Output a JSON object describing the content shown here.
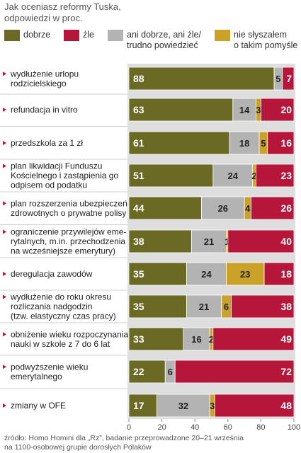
{
  "subtitle": "Jak oceniasz reformy Tuska,\nodpowiedzi w proc.",
  "colors": {
    "dobrze": "#6b6a24",
    "zle": "#b5163a",
    "ani": "#b3b3b3",
    "nie": "#c9a227",
    "band": "#dedede",
    "arrow": "#b5163a"
  },
  "legend": [
    {
      "name": "dobrze",
      "label": "dobrze",
      "color_key": "dobrze"
    },
    {
      "name": "zle",
      "label": "źle",
      "color_key": "zle"
    },
    {
      "name": "ani",
      "label": "ani dobrze, ani źle/\ntrudno powiedzieć",
      "color_key": "ani"
    },
    {
      "name": "nie",
      "label": "nie słyszałem\no takim pomyśle",
      "color_key": "nie"
    }
  ],
  "chart_data": {
    "type": "bar",
    "stacked": true,
    "orientation": "horizontal",
    "xlim": [
      0,
      100
    ],
    "xticks": [
      0,
      20,
      40,
      60,
      80,
      100
    ],
    "categories": [
      "wydłużenie urlopu\nrodzicielskiego",
      "refundacja in vitro",
      "przedszkola za 1 zł",
      "plan likwidacji Funduszu\nKościelnego i zastąpienia go\nodpisem od podatku",
      "plan rozszerzenia ubezpieczeń\nzdrowotnych o prywatne polisy",
      "ograniczenie przywilejów eme-\nrytalnych, m.in. przechodzenia\nna wcześniejsze emerytury)",
      "deregulacja zawodów",
      "wydłużenie do roku okresu\nrozliczania nadgodzin\n(tzw. elastyczny czas pracy)",
      "obniżenie wieku rozpoczynania\nnauki w szkole z 7 do 6 lat",
      "podwyższenie wieku\nemerytalnego",
      "zmiany w OFE"
    ],
    "series": [
      {
        "name": "dobrze",
        "values": [
          88,
          63,
          61,
          51,
          44,
          38,
          35,
          35,
          33,
          22,
          17
        ]
      },
      {
        "name": "ani dobrze, ani źle/trudno powiedzieć",
        "values": [
          5,
          14,
          18,
          24,
          26,
          21,
          24,
          21,
          16,
          6,
          32
        ]
      },
      {
        "name": "nie słyszałem o takim pomyśle",
        "values": [
          0,
          3,
          5,
          2,
          4,
          1,
          23,
          6,
          2,
          0,
          3
        ]
      },
      {
        "name": "źle",
        "values": [
          7,
          20,
          16,
          23,
          26,
          40,
          18,
          38,
          49,
          72,
          48
        ]
      }
    ],
    "value_labels": [
      [
        "88",
        "5",
        "",
        "7"
      ],
      [
        "63",
        "14",
        "3",
        "20"
      ],
      [
        "61",
        "18",
        "5",
        "16"
      ],
      [
        "51",
        "24",
        "2",
        "23"
      ],
      [
        "44",
        "26",
        "4",
        "26"
      ],
      [
        "38",
        "21",
        "1",
        "40"
      ],
      [
        "35",
        "24",
        "23",
        "18"
      ],
      [
        "35",
        "21",
        "6",
        "38"
      ],
      [
        "33",
        "16",
        "2",
        "49"
      ],
      [
        "22",
        "6",
        "",
        "72"
      ],
      [
        "17",
        "32",
        "3",
        "48"
      ]
    ]
  },
  "footnote": "źródło: Homo Homini dla „Rz”, badanie przeprowadzone 20–21 września\nna 1100-osobowej grupie dorosłych Polaków"
}
